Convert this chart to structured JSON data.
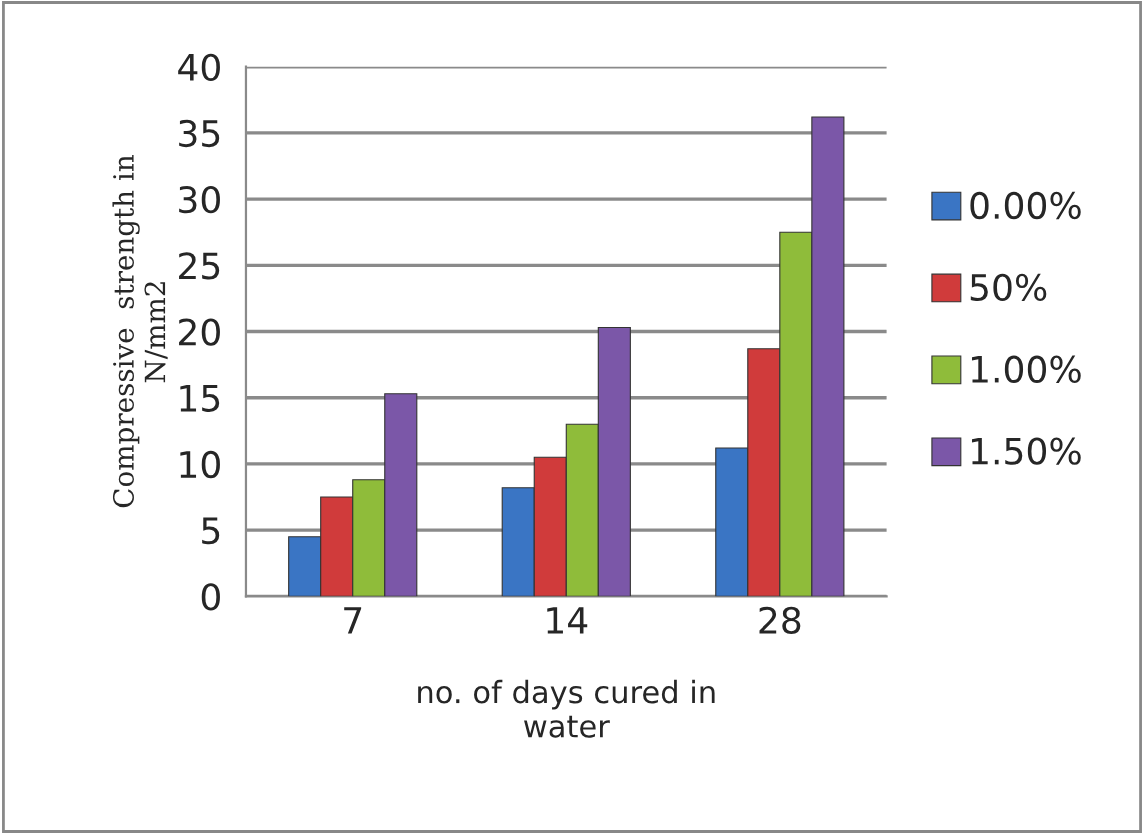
{
  "chart_data": {
    "type": "bar",
    "categories": [
      "7",
      "14",
      "28"
    ],
    "series": [
      {
        "name": "0.00%",
        "color": "#3a75c4",
        "values": [
          4.5,
          8.2,
          11.2
        ]
      },
      {
        "name": "50%",
        "color": "#d03b3b",
        "values": [
          7.5,
          10.5,
          18.7
        ]
      },
      {
        "name": "1.00%",
        "color": "#8fbc3a",
        "values": [
          8.8,
          13,
          27.5
        ]
      },
      {
        "name": "1.50%",
        "color": "#7b57a8",
        "values": [
          15.3,
          20.3,
          36.2
        ]
      }
    ],
    "xlabel": "no. of days cured in\nwater",
    "ylabel": "Compressive  strength in\nN/mm2",
    "ylim": [
      0,
      40
    ],
    "yticks": [
      0,
      5,
      10,
      15,
      20,
      25,
      30,
      35,
      40
    ],
    "grid": "y",
    "legend": "right"
  }
}
